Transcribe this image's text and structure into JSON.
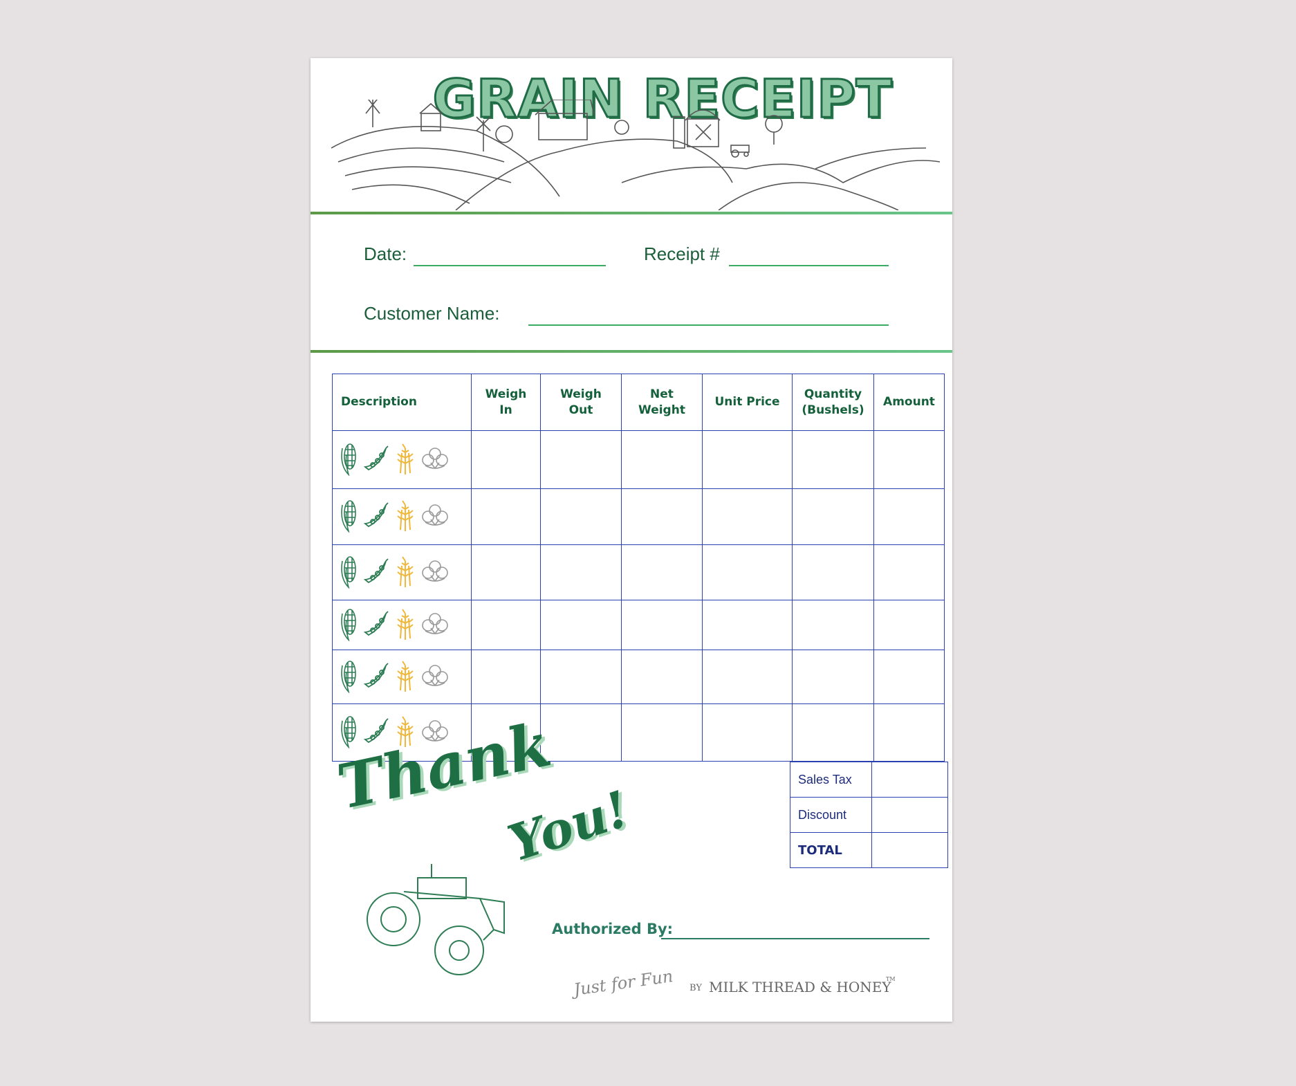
{
  "document": {
    "title": "GRAIN RECEIPT",
    "fields": {
      "date_label": "Date:",
      "date_value": "",
      "receipt_label": "Receipt #",
      "receipt_value": "",
      "customer_label": "Customer Name:",
      "customer_value": ""
    },
    "table": {
      "headers": [
        "Description",
        "Weigh In",
        "Weigh Out",
        "Net Weight",
        "Unit Price",
        "Quantity (Bushels)",
        "Amount"
      ],
      "row_icons": [
        "corn-icon",
        "pea-pod-icon",
        "wheat-icon",
        "cotton-icon"
      ],
      "rows": [
        [
          "",
          "",
          "",
          "",
          "",
          ""
        ],
        [
          "",
          "",
          "",
          "",
          "",
          ""
        ],
        [
          "",
          "",
          "",
          "",
          "",
          ""
        ],
        [
          "",
          "",
          "",
          "",
          "",
          ""
        ],
        [
          "",
          "",
          "",
          "",
          "",
          ""
        ],
        [
          "",
          "",
          "",
          "",
          "",
          ""
        ]
      ]
    },
    "totals": [
      {
        "label": "Sales Tax",
        "value": ""
      },
      {
        "label": "Discount",
        "value": ""
      },
      {
        "label": "TOTAL",
        "value": ""
      }
    ],
    "thank_you": {
      "line1": "Thank",
      "line2": "You!"
    },
    "authorized_label": "Authorized By:",
    "brand": {
      "script": "Just for Fun",
      "by": "BY",
      "name": "MILK THREAD & HONEY",
      "tm": "TM"
    },
    "colors": {
      "green": "#1b5e3a",
      "light_green": "#8cc7a4",
      "table_blue": "#2a3fb0",
      "wheat": "#f0b73a"
    }
  }
}
